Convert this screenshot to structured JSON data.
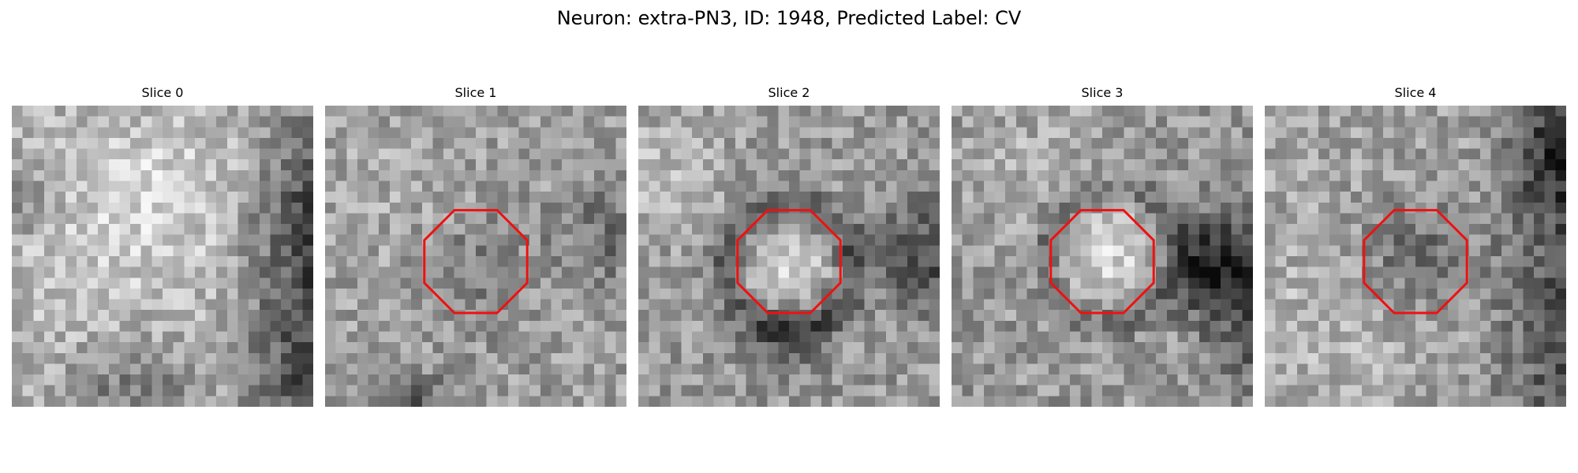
{
  "figure": {
    "title": "Neuron: extra-PN3, ID: 1948, Predicted Label: CV"
  },
  "colors": {
    "contour": "#ee1111",
    "background": "#ffffff"
  },
  "image_grid": 28,
  "slices": [
    {
      "title": "Slice 0",
      "has_contour": false,
      "pattern": "bright-soma-dark-right"
    },
    {
      "title": "Slice 1",
      "has_contour": true,
      "pattern": "noisy-gray"
    },
    {
      "title": "Slice 2",
      "has_contour": true,
      "pattern": "bright-center-dark-ring"
    },
    {
      "title": "Slice 3",
      "has_contour": true,
      "pattern": "bright-center-dark-right"
    },
    {
      "title": "Slice 4",
      "has_contour": true,
      "pattern": "dark-center-dark-right"
    }
  ]
}
